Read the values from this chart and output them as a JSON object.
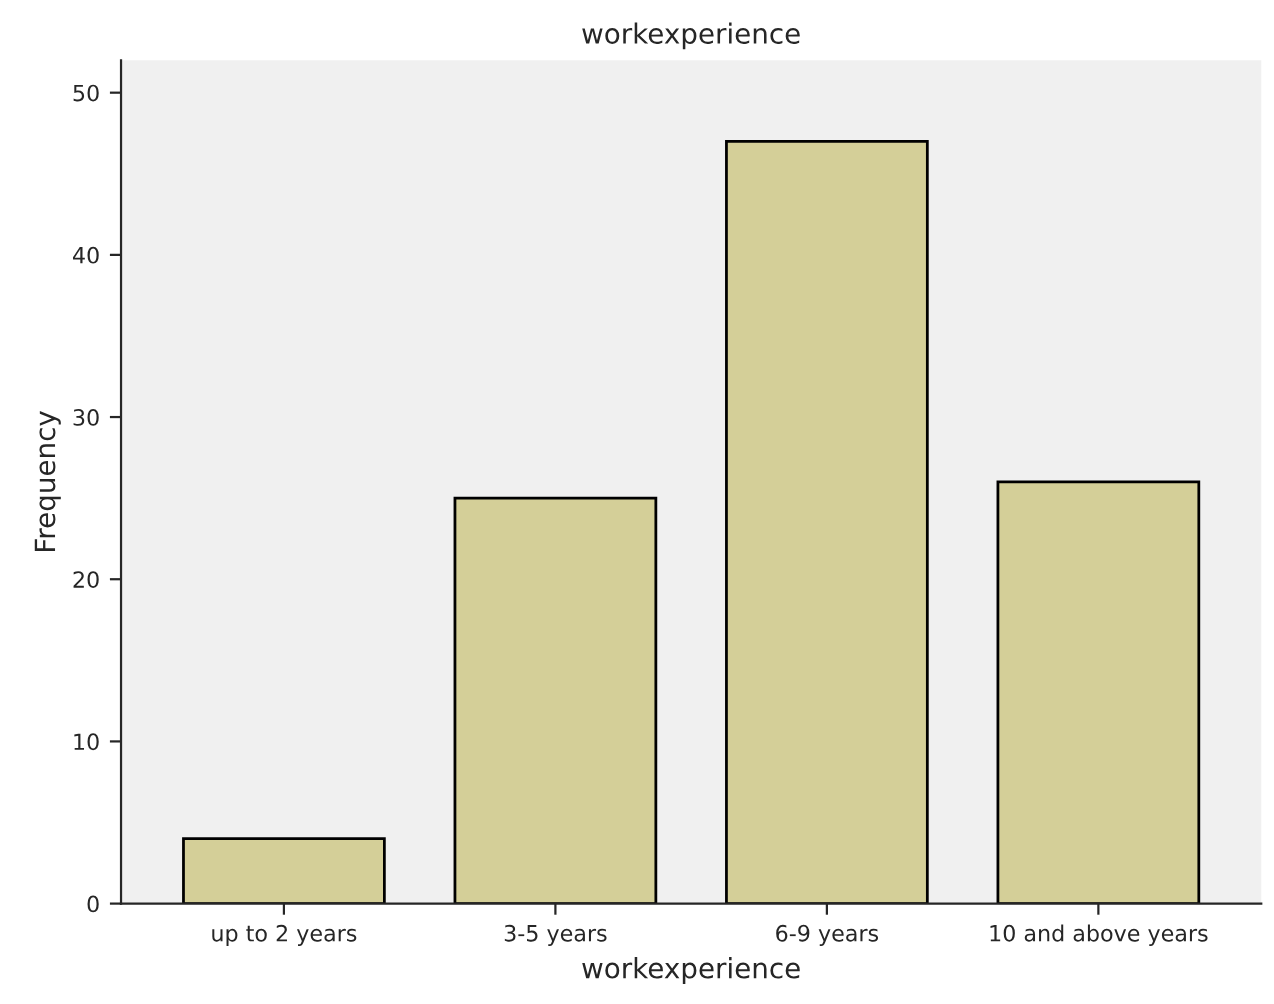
{
  "chart_data": {
    "type": "bar",
    "title": "workexperience",
    "xlabel": "workexperience",
    "ylabel": "Frequency",
    "categories": [
      "up to 2 years",
      "3-5 years",
      "6-9 years",
      "10 and above years"
    ],
    "values": [
      4,
      25,
      47,
      26
    ],
    "color": "#d4cf98",
    "ylim": [
      0,
      52
    ],
    "yticks": [
      0,
      10,
      20,
      30,
      40,
      50
    ],
    "grid": false,
    "legend": false
  }
}
